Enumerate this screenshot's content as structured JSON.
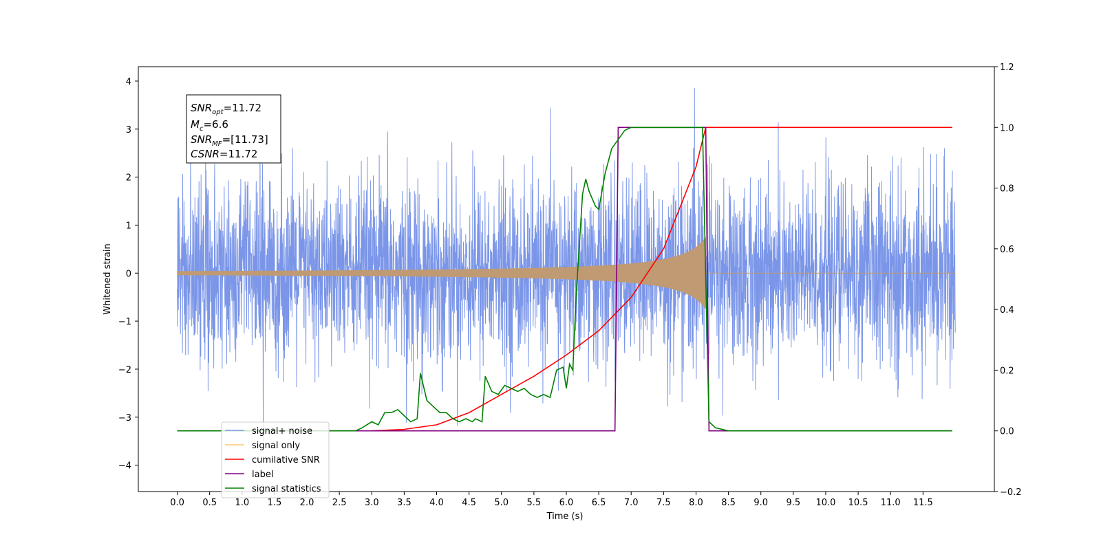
{
  "chart_data": {
    "type": "line",
    "title": "",
    "xlabel": "Time (s)",
    "ylabel": "Whitened strain",
    "xlim": [
      -0.6,
      12.6
    ],
    "ylim_left": [
      -4.55,
      4.3
    ],
    "ylim_right": [
      -0.2,
      1.2
    ],
    "x_ticks": [
      "0.0",
      "0.5",
      "1.0",
      "1.5",
      "2.0",
      "2.5",
      "3.0",
      "3.5",
      "4.0",
      "4.5",
      "5.0",
      "5.5",
      "6.0",
      "6.5",
      "7.0",
      "7.5",
      "8.0",
      "8.5",
      "9.0",
      "9.5",
      "10.0",
      "10.5",
      "11.0",
      "11.5"
    ],
    "y_ticks_left": [
      "4",
      "3",
      "2",
      "1",
      "0",
      "−1",
      "−2",
      "−3",
      "−4"
    ],
    "y_ticks_right": [
      "1.2",
      "1.0",
      "0.8",
      "0.6",
      "0.4",
      "0.2",
      "0.0",
      "−0.2"
    ],
    "grid": false,
    "legend_position": "lower-left",
    "annotation": {
      "snr_opt": {
        "symbol": "SNR",
        "sub": "opt",
        "value": "=11.72"
      },
      "mc": {
        "symbol": "M",
        "sub": "c",
        "value": "=6.6"
      },
      "snr_mf": {
        "symbol": "SNR",
        "sub": "MF",
        "value": "=[11.73]"
      },
      "csnr": {
        "symbol": "CSNR",
        "value": "=11.72"
      }
    },
    "noise": {
      "t_start": 0.0,
      "t_end": 12.0,
      "std": 1.0,
      "min": -4.1,
      "max": 3.88
    },
    "signal": {
      "t_start": 0.0,
      "t_merge": 8.15,
      "peak_amplitude": 0.75
    },
    "series": [
      {
        "name": "signal+ noise",
        "axis": "left",
        "color": "#7b96e8"
      },
      {
        "name": "signal only",
        "axis": "left",
        "color": "#ffc773"
      },
      {
        "name": "cumilative SNR",
        "axis": "right",
        "color": "#ff0000",
        "x": [
          3.0,
          3.5,
          4.0,
          4.5,
          5.0,
          5.5,
          6.0,
          6.5,
          7.0,
          7.5,
          8.0,
          8.15,
          8.2,
          11.95
        ],
        "y": [
          0.0,
          0.005,
          0.02,
          0.06,
          0.12,
          0.18,
          0.25,
          0.33,
          0.44,
          0.6,
          0.87,
          1.0,
          1.0,
          1.0
        ]
      },
      {
        "name": "label",
        "axis": "right",
        "color": "#800080",
        "x": [
          0.0,
          6.75,
          6.8,
          8.15,
          8.2,
          11.95
        ],
        "y": [
          0.0,
          0.0,
          1.0,
          1.0,
          0.0,
          0.0
        ]
      },
      {
        "name": "signal statistics",
        "axis": "right",
        "color": "#008000",
        "x": [
          0.0,
          2.75,
          2.85,
          3.0,
          3.1,
          3.2,
          3.3,
          3.4,
          3.5,
          3.6,
          3.7,
          3.75,
          3.85,
          3.95,
          4.05,
          4.15,
          4.25,
          4.35,
          4.45,
          4.55,
          4.6,
          4.7,
          4.75,
          4.85,
          4.95,
          5.05,
          5.15,
          5.25,
          5.35,
          5.45,
          5.55,
          5.65,
          5.75,
          5.85,
          5.95,
          6.0,
          6.05,
          6.1,
          6.15,
          6.25,
          6.3,
          6.35,
          6.45,
          6.5,
          6.6,
          6.7,
          6.8,
          6.9,
          7.0,
          7.2,
          7.5,
          7.8,
          8.0,
          8.1,
          8.15,
          8.2,
          8.3,
          8.5,
          11.95
        ],
        "y": [
          0.0,
          0.0,
          0.01,
          0.03,
          0.02,
          0.06,
          0.06,
          0.07,
          0.05,
          0.03,
          0.04,
          0.19,
          0.1,
          0.08,
          0.06,
          0.06,
          0.04,
          0.03,
          0.04,
          0.03,
          0.04,
          0.03,
          0.18,
          0.13,
          0.12,
          0.15,
          0.14,
          0.13,
          0.14,
          0.12,
          0.11,
          0.12,
          0.11,
          0.2,
          0.21,
          0.14,
          0.22,
          0.2,
          0.44,
          0.78,
          0.83,
          0.79,
          0.74,
          0.73,
          0.85,
          0.93,
          0.96,
          0.99,
          1.0,
          1.0,
          1.0,
          1.0,
          1.0,
          1.0,
          0.5,
          0.03,
          0.01,
          0.0,
          0.0
        ]
      }
    ]
  }
}
